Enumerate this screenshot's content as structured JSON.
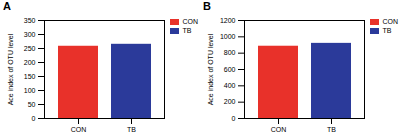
{
  "chart_data": [
    {
      "type": "bar",
      "title": "A",
      "categories": [
        "CON",
        "TB"
      ],
      "values": [
        258,
        265
      ],
      "colors": [
        "#e8312a",
        "#2b3a9a"
      ],
      "y_label": "Ace index of OTU level",
      "ylim": [
        0,
        350
      ],
      "yticks": [
        0,
        50,
        100,
        150,
        200,
        250,
        300,
        350
      ],
      "legend": "top-right"
    },
    {
      "type": "bar",
      "title": "B",
      "categories": [
        "CON",
        "TB"
      ],
      "values": [
        885,
        920
      ],
      "colors": [
        "#e8312a",
        "#2b3a9a"
      ],
      "y_label": "Ace index of OTU level",
      "ylim": [
        0,
        1200
      ],
      "yticks": [
        0,
        200,
        400,
        600,
        800,
        1000,
        1200
      ],
      "legend": "top-right"
    }
  ]
}
